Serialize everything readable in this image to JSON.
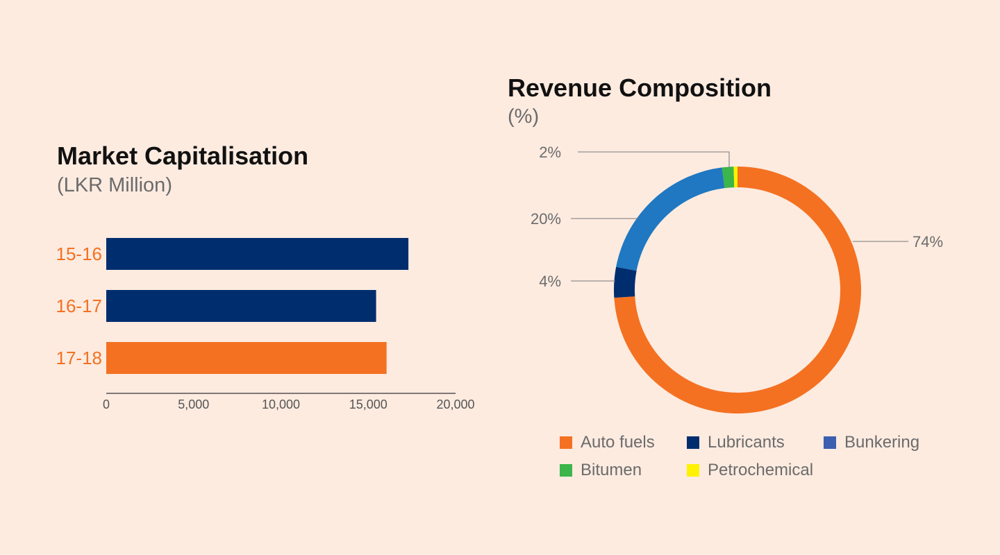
{
  "bar_chart": {
    "title": "Market Capitalisation",
    "subtitle": "(LKR Million)",
    "colors": {
      "default": "#002d6e",
      "highlight": "#f47121",
      "label": "#f47121",
      "tick": "#555555"
    }
  },
  "pie_chart": {
    "title": "Revenue Composition",
    "subtitle": "(%)",
    "colors": {
      "Auto fuels": "#f47121",
      "Lubricants": "#002d6e",
      "Bunkering": "#1f78c1",
      "Bitumen": "#3cb54a",
      "Petrochemical": "#fff200"
    },
    "legend_colors": {
      "Auto fuels": "#f47121",
      "Lubricants": "#002d6e",
      "Bunkering": "#3c5fb0",
      "Bitumen": "#3cb54a",
      "Petrochemical": "#fff200"
    }
  },
  "chart_data": [
    {
      "type": "bar",
      "orientation": "horizontal",
      "title": "Market Capitalisation",
      "subtitle": "(LKR Million)",
      "categories": [
        "15-16",
        "16-17",
        "17-18"
      ],
      "values": [
        17300,
        15450,
        16050
      ],
      "highlight": "17-18",
      "xlim": [
        0,
        20000
      ],
      "xticks": [
        "0",
        "5,000",
        "10,000",
        "15,000",
        "20,000"
      ],
      "grid": false
    },
    {
      "type": "pie",
      "style": "donut",
      "title": "Revenue Composition",
      "subtitle": "(%)",
      "categories": [
        "Auto fuels",
        "Lubricants",
        "Bunkering",
        "Bitumen",
        "Petrochemical"
      ],
      "values": [
        74,
        4,
        20,
        1.5,
        0.5
      ],
      "labels": [
        "74%",
        "4%",
        "20%",
        "2%"
      ],
      "legend": [
        "Auto fuels",
        "Lubricants",
        "Bunkering",
        "Bitumen",
        "Petrochemical"
      ],
      "legend_position": "bottom"
    }
  ]
}
